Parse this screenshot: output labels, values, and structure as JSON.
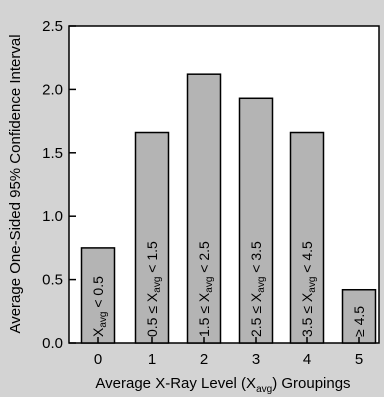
{
  "chart_data": {
    "type": "bar",
    "title": "",
    "xlabel": {
      "base": "Average X-Ray Level (X",
      "sub": "avg",
      "tail": ") Groupings"
    },
    "ylabel": "Average One-Sided 95% Confidence Interval",
    "ylim": [
      0,
      2.5
    ],
    "yticks": [
      "0.0",
      "0.5",
      "1.0",
      "1.5",
      "2.0",
      "2.5"
    ],
    "categories": [
      "0",
      "1",
      "2",
      "3",
      "4",
      "5"
    ],
    "values": [
      0.75,
      1.66,
      2.12,
      1.93,
      1.66,
      0.42
    ],
    "bar_labels": [
      {
        "pre": "X",
        "sub": "avg",
        "post": " < 0.5"
      },
      {
        "pre": "0.5 ≤ X",
        "sub": "avg",
        "post": " < 1.5"
      },
      {
        "pre": "1.5 ≤ X",
        "sub": "avg",
        "post": " < 2.5"
      },
      {
        "pre": "2.5 ≤ X",
        "sub": "avg",
        "post": " < 3.5"
      },
      {
        "pre": "3.5 ≤ X",
        "sub": "avg",
        "post": " < 4.5"
      },
      {
        "pre": "≥ 4.5",
        "sub": "",
        "post": ""
      }
    ],
    "grid": false,
    "colors": {
      "background": "#d3d3d3",
      "plot_background": "#ffffff",
      "bar_fill": "#b4b4b4",
      "bar_stroke": "#000000"
    }
  }
}
